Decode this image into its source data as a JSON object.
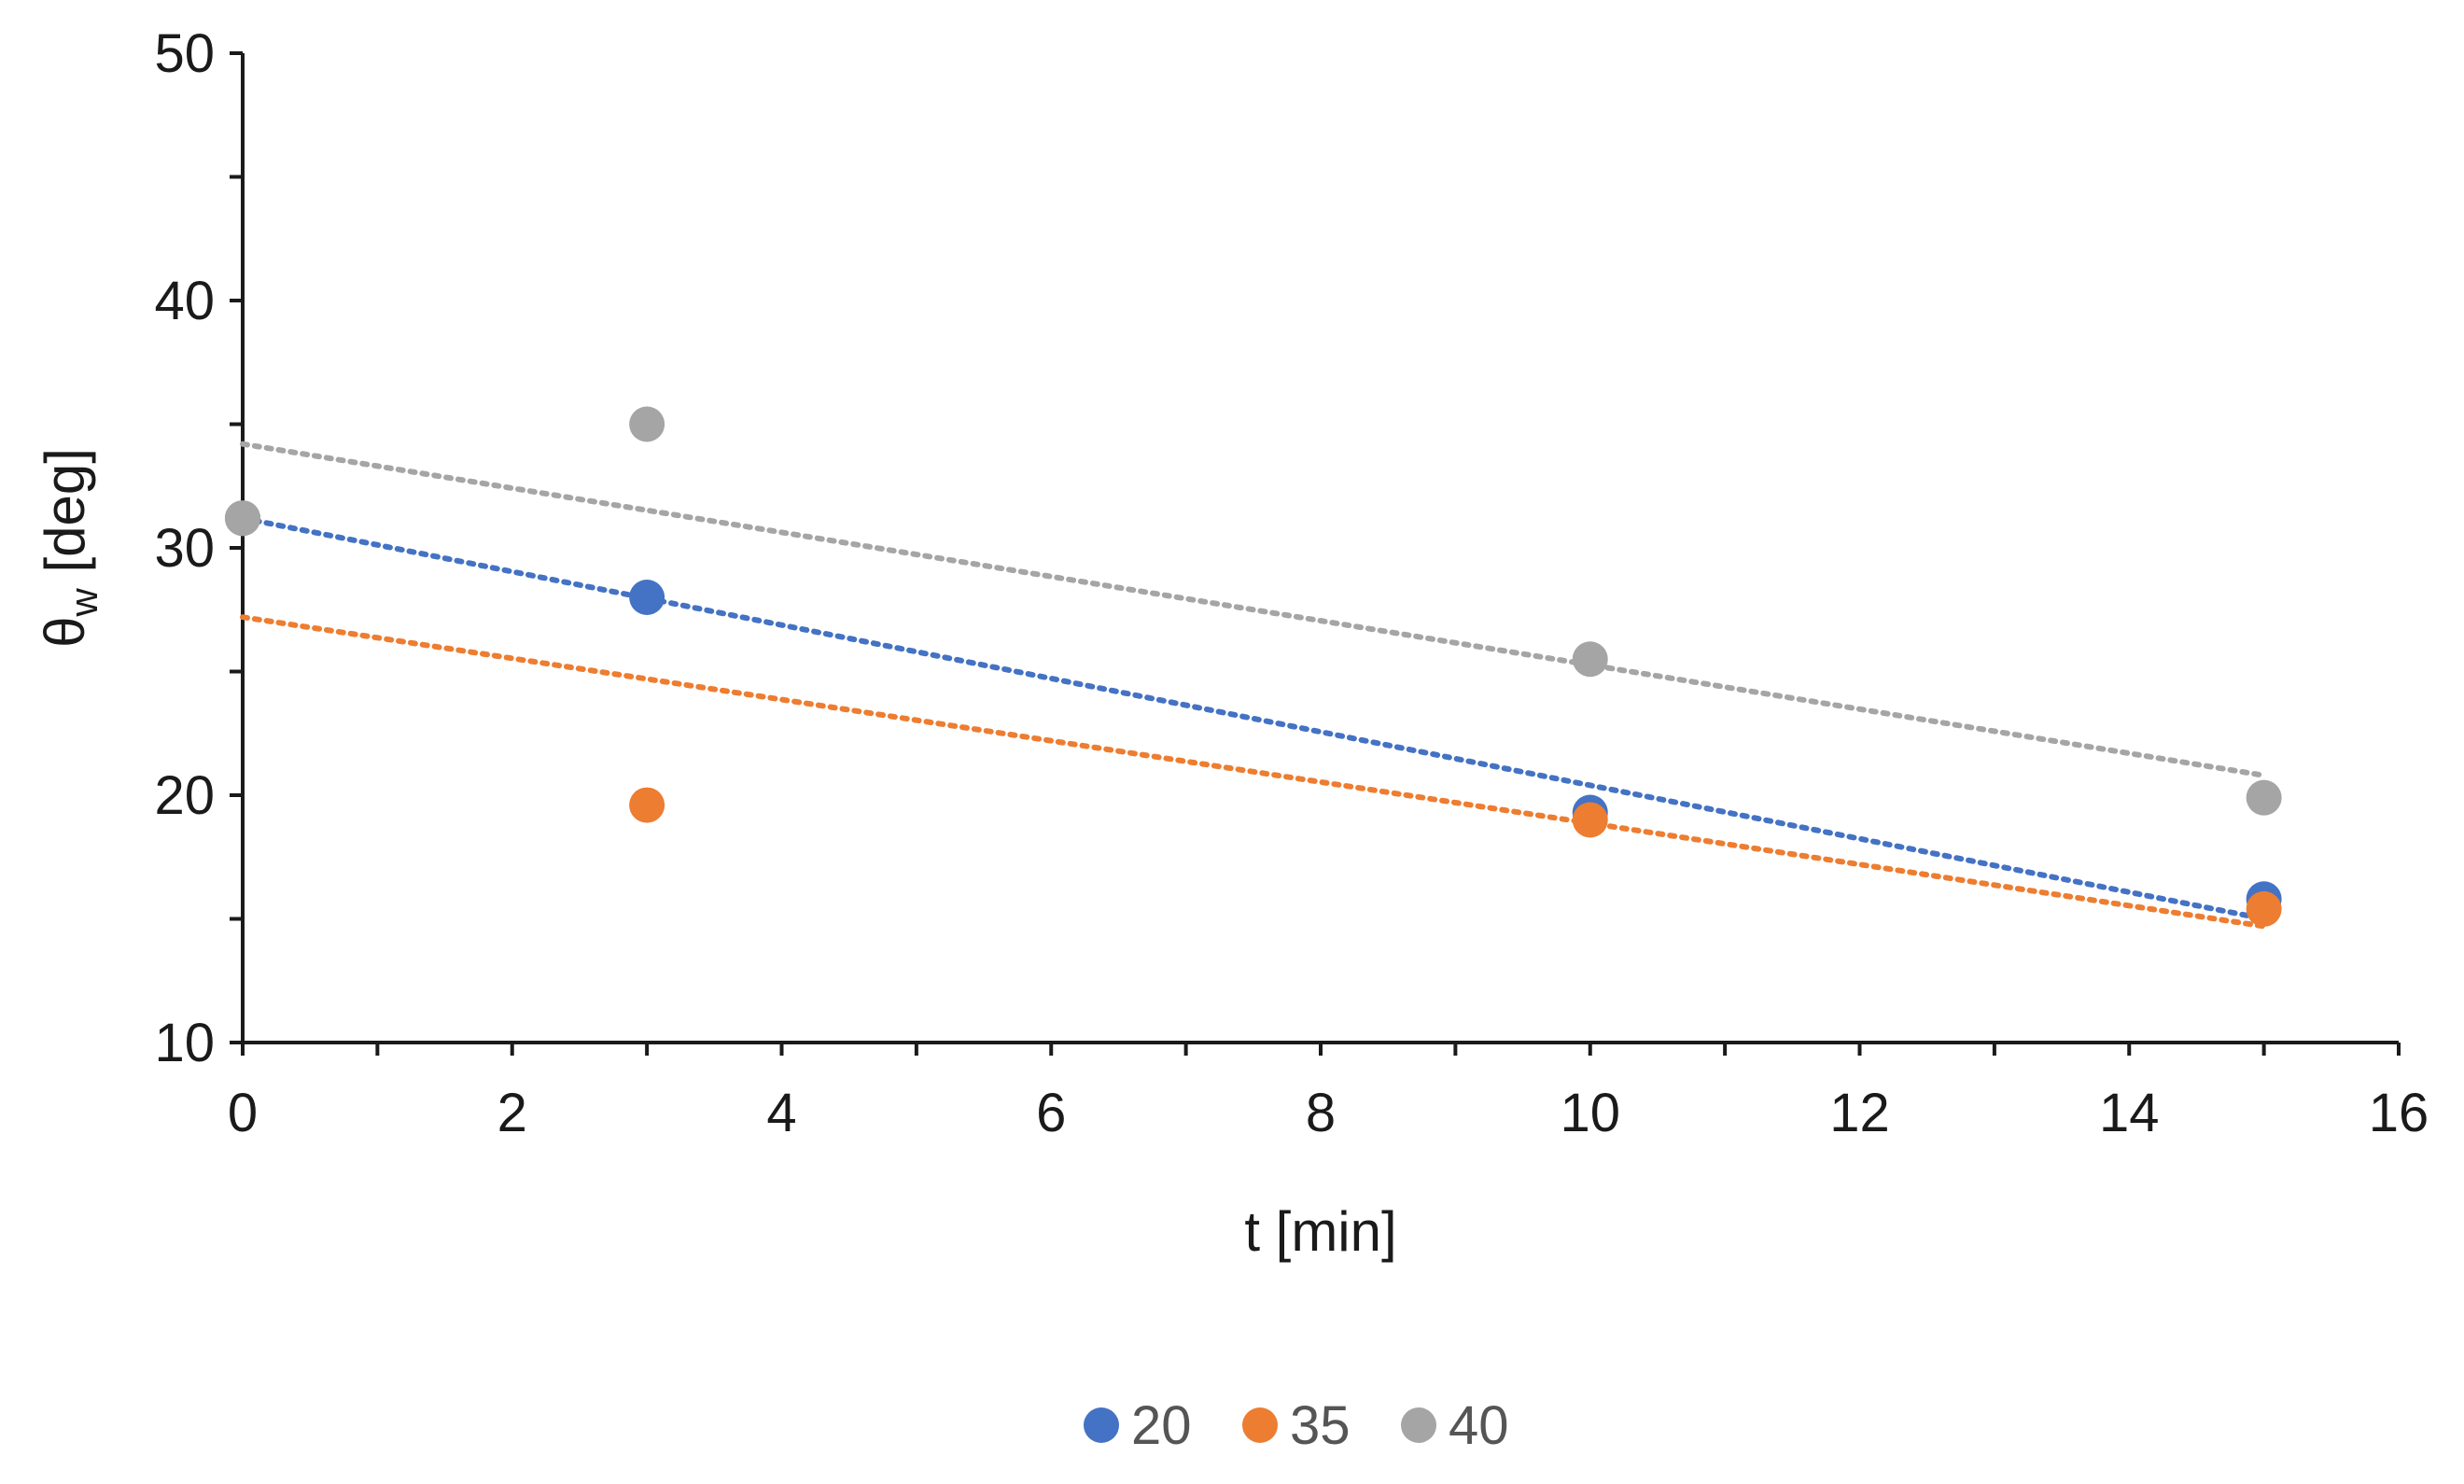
{
  "chart_data": {
    "type": "scatter",
    "title": "",
    "xlabel": "t [min]",
    "ylabel_main": "θ",
    "ylabel_sub": "w",
    "ylabel_unit": " [deg]",
    "xlim": [
      0,
      16
    ],
    "ylim": [
      10,
      50
    ],
    "xticks": [
      0,
      2,
      4,
      6,
      8,
      10,
      12,
      14,
      16
    ],
    "yticks": [
      10,
      20,
      30,
      40,
      50
    ],
    "xtick_labels": [
      "0",
      "2",
      "4",
      "6",
      "8",
      "10",
      "12",
      "14",
      "16"
    ],
    "ytick_labels": [
      "10",
      "20",
      "30",
      "40",
      "50"
    ],
    "grid": false,
    "legend_position": "bottom-center",
    "series": [
      {
        "name": "20",
        "color": "#4472C4",
        "x": [
          0,
          3,
          10,
          15
        ],
        "y": [
          31.2,
          28.0,
          19.3,
          15.8
        ],
        "trendline": {
          "type": "linear",
          "from": [
            0,
            31.2
          ],
          "to": [
            15,
            15.0
          ]
        }
      },
      {
        "name": "35",
        "color": "#ED7D31",
        "x": [
          0,
          3,
          10,
          15
        ],
        "y": [
          31.2,
          19.6,
          19.0,
          15.4
        ],
        "trendline": {
          "type": "linear",
          "from": [
            0,
            27.2
          ],
          "to": [
            15,
            14.7
          ]
        }
      },
      {
        "name": "40",
        "color": "#A5A5A5",
        "x": [
          0,
          3,
          10,
          15
        ],
        "y": [
          31.2,
          35.0,
          25.5,
          19.9
        ],
        "trendline": {
          "type": "linear",
          "from": [
            0,
            34.2
          ],
          "to": [
            15,
            20.8
          ]
        }
      }
    ]
  }
}
